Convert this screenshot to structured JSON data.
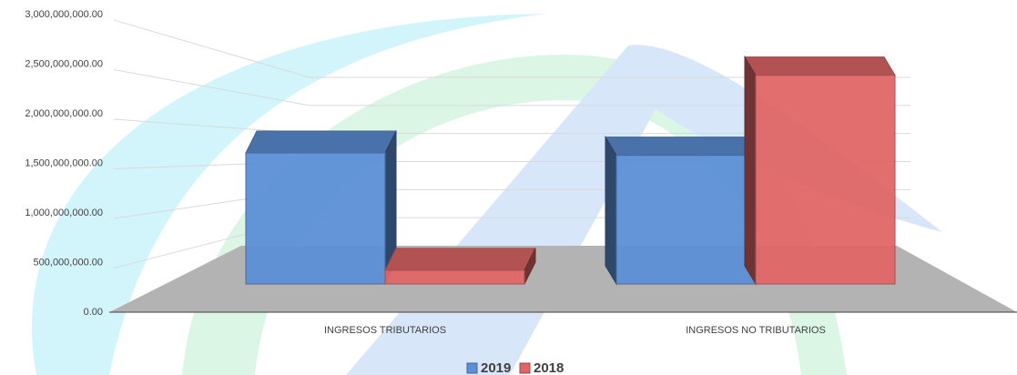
{
  "chart_data": {
    "type": "bar3d",
    "categories": [
      "INGRESOS TRIBUTARIOS",
      "INGRESOS NO TRIBUTARIOS"
    ],
    "series": [
      {
        "name": "2019",
        "color": "#5b8fd6",
        "values": [
          1620000000,
          1590000000
        ]
      },
      {
        "name": "2018",
        "color": "#e06666",
        "values": [
          170000000,
          2580000000
        ]
      }
    ],
    "ylim": [
      0,
      3000000000
    ],
    "yticks": [
      {
        "value": 0,
        "label": "0.00"
      },
      {
        "value": 500000000,
        "label": "500,000,000.00"
      },
      {
        "value": 1000000000,
        "label": "1,000,000,000.00"
      },
      {
        "value": 1500000000,
        "label": "1,500,000,000.00"
      },
      {
        "value": 2000000000,
        "label": "2,000,000,000.00"
      },
      {
        "value": 2500000000,
        "label": "2,500,000,000.00"
      },
      {
        "value": 3000000000,
        "label": "3,000,000,000.00"
      }
    ],
    "grid": true,
    "legend": "bottom"
  }
}
